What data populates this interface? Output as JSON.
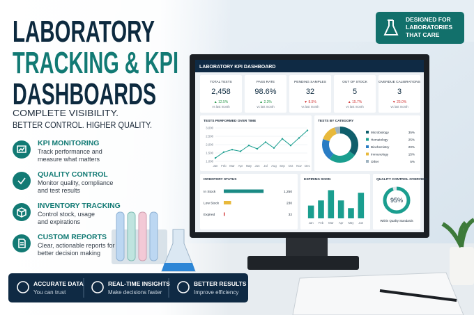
{
  "badge": {
    "lines": [
      "DESIGNED FOR",
      "LABORATORIES",
      "THAT CARE"
    ]
  },
  "header": {
    "title_lines": [
      "LABORATORY",
      "TRACKING & KPI",
      "DASHBOARDS"
    ],
    "tagline_lines": [
      "COMPLETE VISIBILITY.",
      "BETTER CONTROL. HIGHER QUALITY."
    ]
  },
  "features": [
    {
      "title": "KPI MONITORING",
      "desc": [
        "Track performance and",
        "measure what matters"
      ]
    },
    {
      "title": "QUALITY CONTROL",
      "desc": [
        "Monitor quality, compliance",
        "and test results"
      ]
    },
    {
      "title": "INVENTORY TRACKING",
      "desc": [
        "Control stock, usage",
        "and expirations"
      ]
    },
    {
      "title": "CUSTOM REPORTS",
      "desc": [
        "Clear, actionable reports for",
        "better decision making"
      ]
    }
  ],
  "highlights": [
    {
      "title": "ACCURATE DATA",
      "sub": "You can trust"
    },
    {
      "title": "REAL-TIME INSIGHTS",
      "sub": "Make decisions faster"
    },
    {
      "title": "BETTER RESULTS",
      "sub": "Improve efficiency"
    }
  ],
  "dashboard": {
    "title": "LABORATORY KPI DASHBOARD",
    "kpis": [
      {
        "label": "TOTAL TESTS",
        "value": "2,458",
        "change": "▲ 12.5%",
        "change_color": "#2e9b4e",
        "note": "vs last month"
      },
      {
        "label": "PASS RATE",
        "value": "98.6%",
        "change": "▲ 2.3%",
        "change_color": "#2e9b4e",
        "note": "vs last month"
      },
      {
        "label": "PENDING SAMPLES",
        "value": "32",
        "change": "▼ 8.5%",
        "change_color": "#d33b3b",
        "note": "vs last month"
      },
      {
        "label": "OUT OF STOCK",
        "value": "5",
        "change": "▲ 15.7%",
        "change_color": "#d33b3b",
        "note": "vs last month"
      },
      {
        "label": "OVERDUE CALIBRATIONS",
        "value": "3",
        "change": "▼ 25.0%",
        "change_color": "#d33b3b",
        "note": "vs last month"
      }
    ],
    "charts": [
      {
        "type": "line",
        "title": "TESTS PERFORMED OVER TIME",
        "categories": [
          "Jan",
          "Feb",
          "Mar",
          "Apr",
          "May",
          "Jun",
          "Jul",
          "Aug",
          "Sep",
          "Oct",
          "Nov",
          "Dec"
        ],
        "values": [
          1200,
          1550,
          1700,
          1600,
          1950,
          1750,
          2150,
          1800,
          2350,
          1950,
          2400,
          2850
        ],
        "color": "#1a9e8f",
        "ylim": [
          1000,
          3000
        ],
        "yticks": [
          {
            "value": 1000,
            "label": "1,000"
          },
          {
            "value": 1500,
            "label": "1,500"
          },
          {
            "value": 2000,
            "label": "2,000"
          },
          {
            "value": 2500,
            "label": "2,500"
          },
          {
            "value": 3000,
            "label": "3,000"
          }
        ]
      },
      {
        "type": "donut",
        "title": "TESTS BY CATEGORY",
        "categories": [
          "Microbiology",
          "Hematology",
          "Biochemistry",
          "Immunology",
          "Other"
        ],
        "values": [
          35,
          25,
          20,
          15,
          5
        ],
        "value_labels": [
          "35%",
          "25%",
          "20%",
          "15%",
          "5%"
        ],
        "colors": [
          "#0f5e6b",
          "#1a9e8f",
          "#2a7dc4",
          "#e8b93c",
          "#9fb3c0"
        ]
      },
      {
        "type": "hbar",
        "title": "INVENTORY STATUS",
        "categories": [
          "In Stock",
          "Low Stock",
          "Expired"
        ],
        "values": [
          1250,
          230,
          32
        ],
        "value_labels": [
          "1,250",
          "230",
          "32"
        ],
        "colors": [
          "#1a8a84",
          "#e8b93c",
          "#d33b3b"
        ],
        "xlim": [
          0,
          1400
        ]
      },
      {
        "type": "bar",
        "title": "EXPIRING SOON",
        "categories": [
          "Jan",
          "Feb",
          "Mar",
          "Apr",
          "May",
          "Jun"
        ],
        "values": [
          10,
          14,
          22,
          14,
          8,
          20
        ],
        "color": "#1a9e8f",
        "ylim": [
          0,
          25
        ]
      },
      {
        "type": "gauge",
        "title": "QUALITY CONTROL OVERVIEW",
        "value": 95,
        "value_label": "95%",
        "caption": "Within Quality Standards",
        "lim": [
          0,
          100
        ],
        "color": "#1a9e8f"
      }
    ]
  }
}
